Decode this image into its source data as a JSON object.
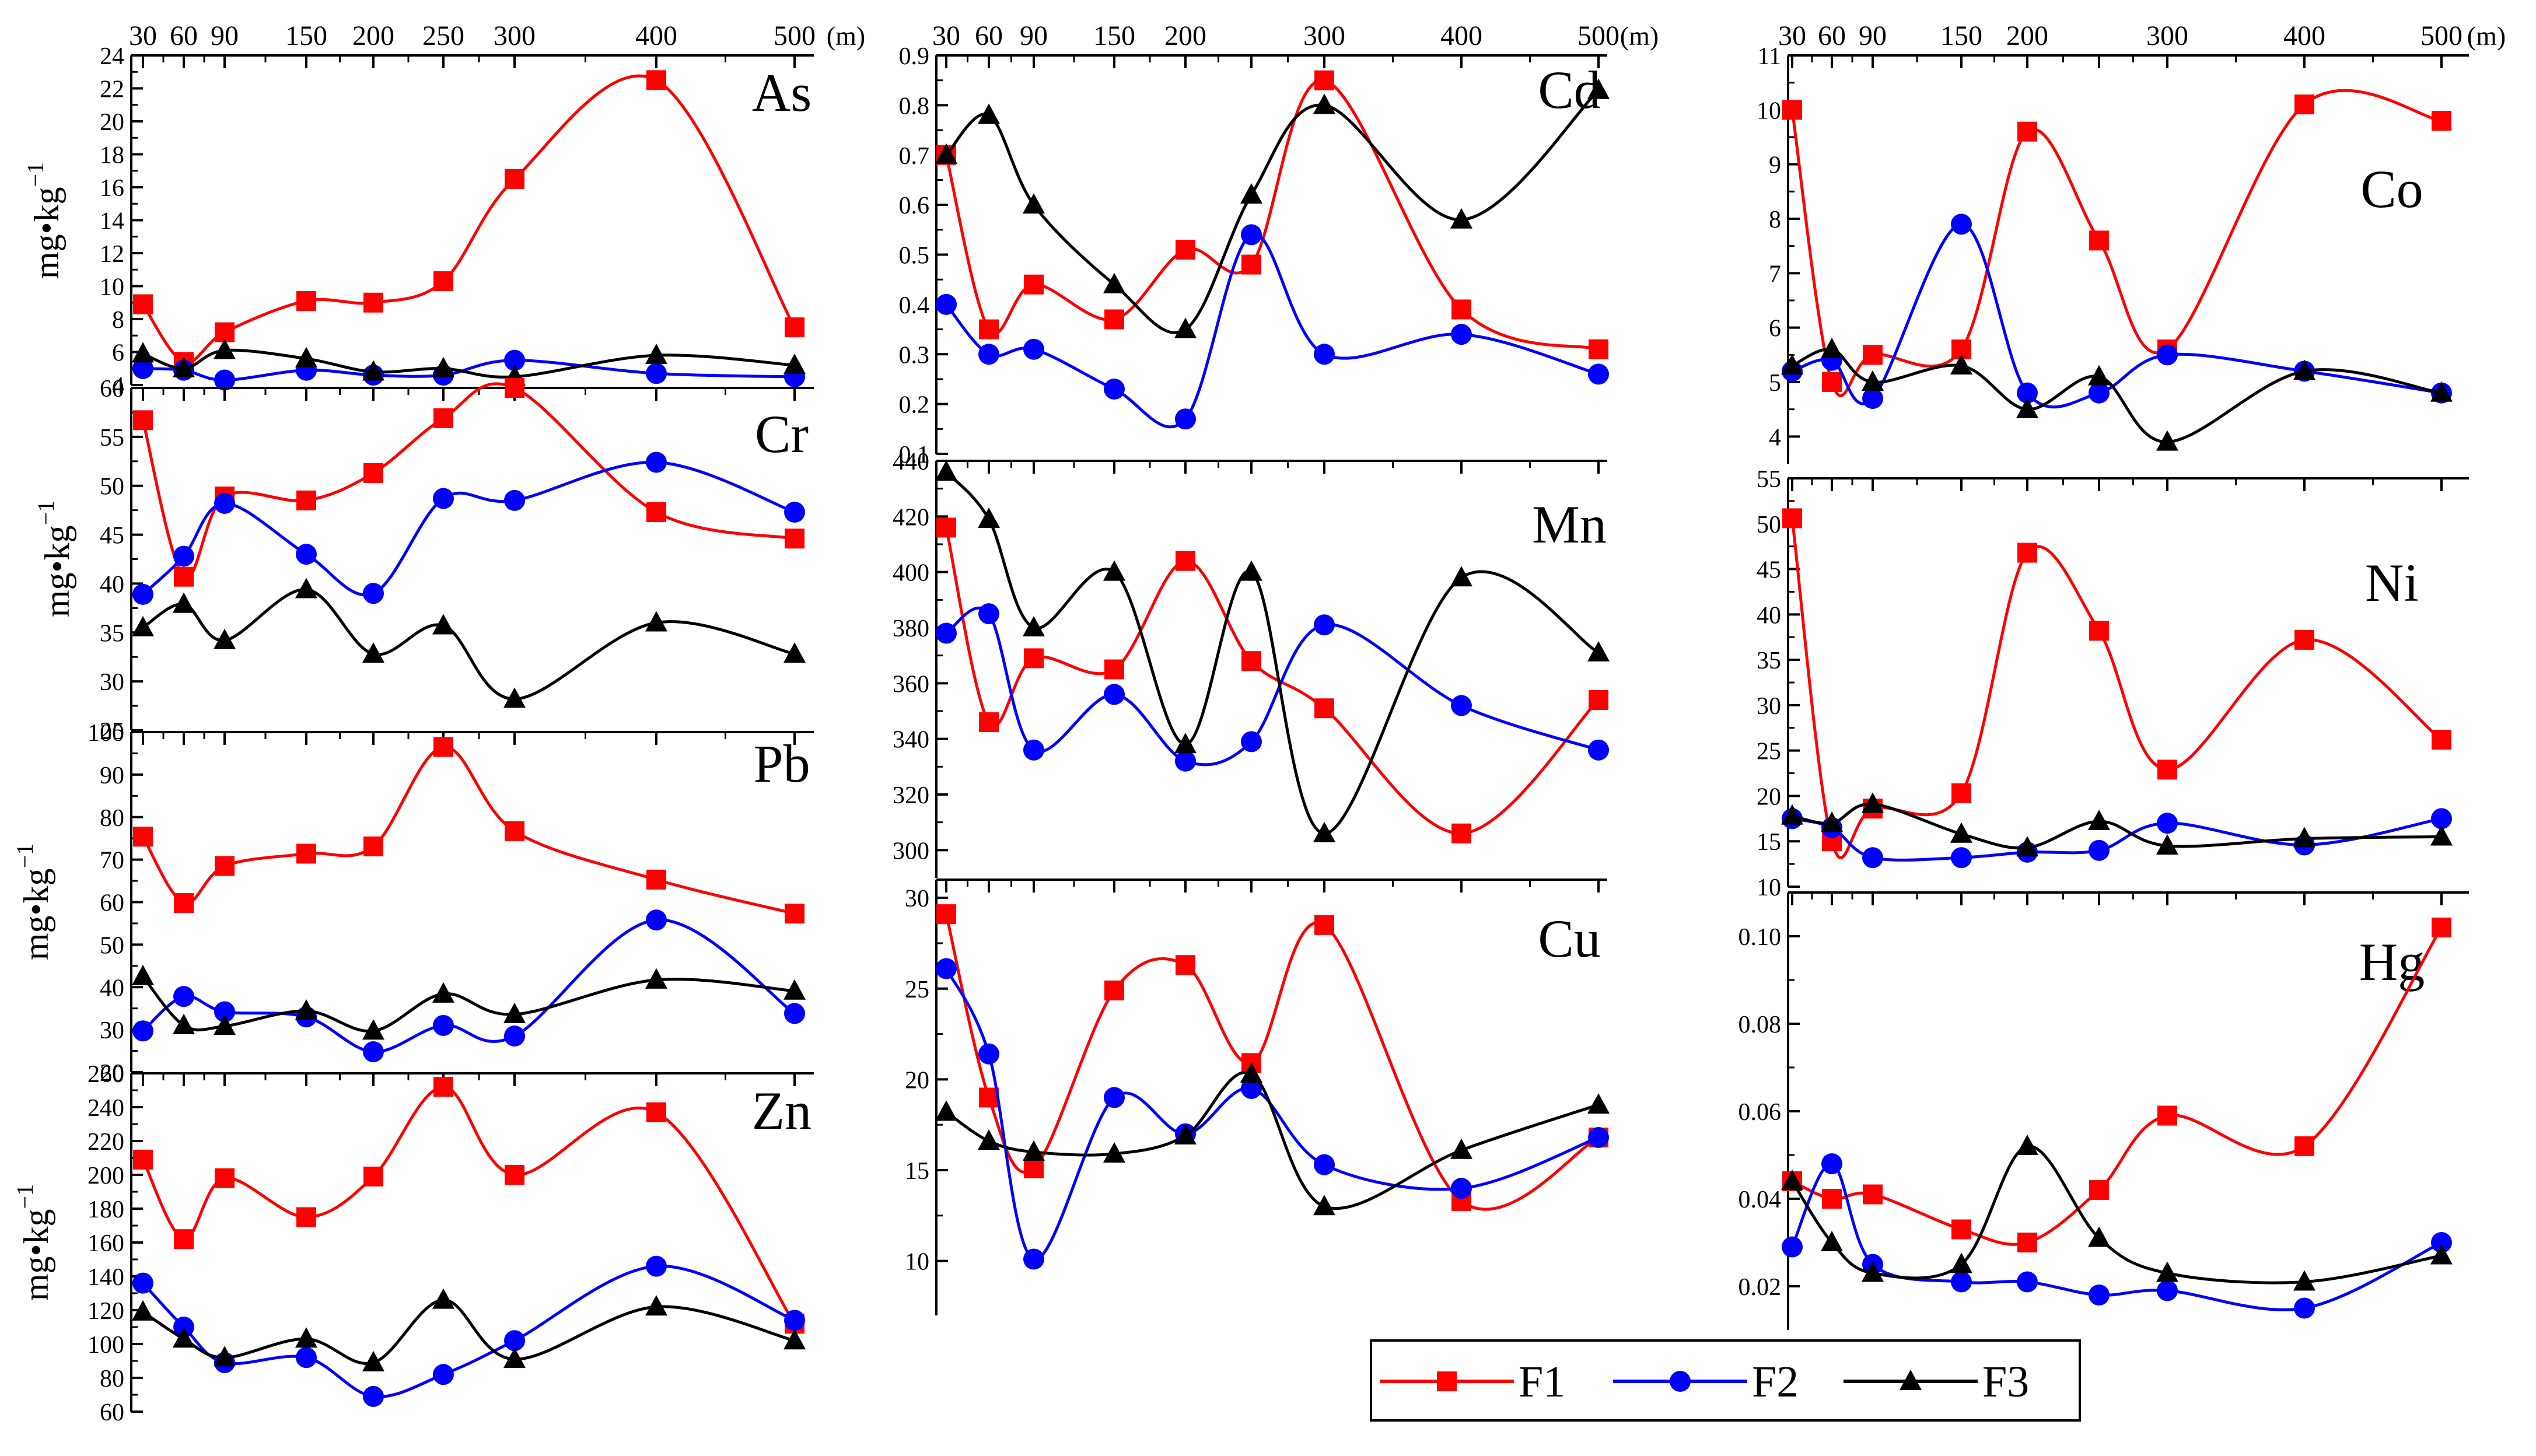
{
  "distance_unit": "(m)",
  "y_unit": "mg•kg",
  "y_unit_exp": "−1",
  "series_names": [
    "F1",
    "F2",
    "F3"
  ],
  "series_colors": [
    "#ff0000",
    "#0000ff",
    "#000000"
  ],
  "series_markers": [
    "square",
    "circle",
    "triangle"
  ],
  "x_ticks": [
    30,
    60,
    90,
    150,
    200,
    250,
    300,
    400,
    500
  ],
  "x_tick_labels": [
    "30",
    "60",
    "90",
    "150",
    "200",
    "250",
    "300",
    "400",
    "500"
  ],
  "x_label_sets": {
    "left": [
      "30",
      "60",
      "90",
      "150",
      "200",
      "250",
      "300",
      "400",
      "500"
    ],
    "mid": [
      "30",
      "60",
      "90",
      "150",
      "200",
      "300",
      "400",
      "500"
    ],
    "right": [
      "30",
      "60",
      "90",
      "150",
      "200",
      "300",
      "400",
      "500"
    ]
  },
  "chart_data": [
    {
      "element": "As",
      "type": "line",
      "categories": [
        30,
        60,
        90,
        150,
        200,
        250,
        300,
        400,
        500
      ],
      "ylim": [
        4,
        24
      ],
      "yticks": [
        4,
        6,
        8,
        10,
        12,
        14,
        16,
        18,
        20,
        22,
        24
      ],
      "series": [
        {
          "name": "F1",
          "values": [
            8.9,
            5.4,
            7.2,
            9.1,
            9.0,
            10.3,
            16.5,
            22.5,
            7.5
          ]
        },
        {
          "name": "F2",
          "values": [
            5.0,
            4.9,
            4.3,
            4.9,
            4.6,
            4.6,
            5.5,
            4.7,
            4.5
          ]
        },
        {
          "name": "F3",
          "values": [
            5.9,
            5.0,
            6.1,
            5.6,
            4.8,
            5.0,
            4.5,
            5.8,
            5.2
          ]
        }
      ]
    },
    {
      "element": "Cr",
      "type": "line",
      "categories": [
        30,
        60,
        90,
        150,
        200,
        250,
        300,
        400,
        500
      ],
      "ylim": [
        25,
        60
      ],
      "yticks": [
        25,
        30,
        35,
        40,
        45,
        50,
        55,
        60
      ],
      "series": [
        {
          "name": "F1",
          "values": [
            56.7,
            40.7,
            48.9,
            48.5,
            51.3,
            56.9,
            60.0,
            47.3,
            44.6
          ]
        },
        {
          "name": "F2",
          "values": [
            38.9,
            42.8,
            48.2,
            43.0,
            39.0,
            48.7,
            48.5,
            52.4,
            47.3
          ]
        },
        {
          "name": "F3",
          "values": [
            35.5,
            37.9,
            34.2,
            39.4,
            32.8,
            35.7,
            28.2,
            36.0,
            32.8
          ]
        }
      ]
    },
    {
      "element": "Pb",
      "type": "line",
      "categories": [
        30,
        60,
        90,
        150,
        200,
        250,
        300,
        400,
        500
      ],
      "ylim": [
        20,
        100
      ],
      "yticks": [
        20,
        30,
        40,
        50,
        60,
        70,
        80,
        90,
        100
      ],
      "series": [
        {
          "name": "F1",
          "values": [
            75.4,
            59.8,
            68.5,
            71.4,
            73.1,
            96.5,
            76.7,
            65.3,
            57.3
          ]
        },
        {
          "name": "F2",
          "values": [
            29.7,
            37.8,
            34.2,
            33.0,
            24.8,
            31.0,
            28.5,
            55.8,
            33.8
          ]
        },
        {
          "name": "F3",
          "values": [
            42.5,
            31.0,
            30.8,
            34.4,
            29.7,
            38.4,
            33.6,
            41.7,
            39.1
          ]
        }
      ]
    },
    {
      "element": "Zn",
      "type": "line",
      "categories": [
        30,
        60,
        90,
        150,
        200,
        250,
        300,
        400,
        500
      ],
      "ylim": [
        60,
        260
      ],
      "yticks": [
        60,
        80,
        100,
        120,
        140,
        160,
        180,
        200,
        220,
        240,
        260
      ],
      "series": [
        {
          "name": "F1",
          "values": [
            209,
            162,
            198,
            175,
            199,
            252,
            200,
            237,
            112
          ]
        },
        {
          "name": "F2",
          "values": [
            136,
            110,
            89,
            92,
            69,
            82,
            102,
            146,
            114
          ]
        },
        {
          "name": "F3",
          "values": [
            119,
            103,
            92,
            103,
            89,
            126,
            91,
            122,
            102
          ]
        }
      ]
    },
    {
      "element": "Cd",
      "type": "line",
      "categories": [
        30,
        60,
        90,
        150,
        200,
        250,
        300,
        400,
        500
      ],
      "ylim": [
        0.1,
        0.9
      ],
      "yticks": [
        0.1,
        0.2,
        0.3,
        0.4,
        0.5,
        0.6,
        0.7,
        0.8,
        0.9
      ],
      "series": [
        {
          "name": "F1",
          "values": [
            0.7,
            0.35,
            0.44,
            0.37,
            0.51,
            0.48,
            0.85,
            0.39,
            0.31
          ]
        },
        {
          "name": "F2",
          "values": [
            0.4,
            0.3,
            0.31,
            0.23,
            0.17,
            0.54,
            0.3,
            0.34,
            0.26
          ]
        },
        {
          "name": "F3",
          "values": [
            0.7,
            0.78,
            0.6,
            0.44,
            0.35,
            0.62,
            0.8,
            0.57,
            0.83
          ]
        }
      ]
    },
    {
      "element": "Mn",
      "type": "line",
      "categories": [
        30,
        60,
        90,
        150,
        200,
        250,
        300,
        400,
        500
      ],
      "ylim": [
        290,
        440
      ],
      "yticks": [
        300,
        320,
        340,
        360,
        380,
        400,
        420,
        440
      ],
      "series": [
        {
          "name": "F1",
          "values": [
            416,
            346,
            369,
            365,
            404,
            368,
            351,
            306,
            354
          ]
        },
        {
          "name": "F2",
          "values": [
            378,
            385,
            336,
            356,
            332,
            339,
            381,
            352,
            336
          ]
        },
        {
          "name": "F3",
          "values": [
            436,
            419,
            380,
            400,
            338,
            400,
            306,
            398,
            371
          ]
        }
      ]
    },
    {
      "element": "Cu",
      "type": "line",
      "categories": [
        30,
        60,
        90,
        150,
        200,
        250,
        300,
        400,
        500
      ],
      "ylim": [
        7,
        31
      ],
      "yticks": [
        10,
        15,
        20,
        25,
        30
      ],
      "series": [
        {
          "name": "F1",
          "values": [
            29.1,
            19.0,
            15.1,
            24.9,
            26.3,
            20.9,
            28.5,
            13.3,
            16.8
          ]
        },
        {
          "name": "F2",
          "values": [
            26.1,
            21.4,
            10.1,
            19.0,
            17.0,
            19.5,
            15.3,
            14.0,
            16.8
          ]
        },
        {
          "name": "F3",
          "values": [
            18.2,
            16.6,
            16.0,
            15.9,
            16.9,
            20.3,
            13.0,
            16.1,
            18.6
          ]
        }
      ]
    },
    {
      "element": "Co",
      "type": "line",
      "categories": [
        30,
        60,
        90,
        150,
        200,
        250,
        300,
        400,
        500
      ],
      "ylim": [
        3.5,
        11
      ],
      "yticks": [
        4,
        5,
        6,
        7,
        8,
        9,
        10,
        11
      ],
      "series": [
        {
          "name": "F1",
          "values": [
            10.0,
            5.0,
            5.5,
            5.6,
            9.6,
            7.6,
            5.6,
            10.1,
            9.8
          ]
        },
        {
          "name": "F2",
          "values": [
            5.2,
            5.4,
            4.7,
            7.9,
            4.8,
            4.8,
            5.5,
            5.2,
            4.8
          ]
        },
        {
          "name": "F3",
          "values": [
            5.3,
            5.6,
            5.0,
            5.3,
            4.5,
            5.1,
            3.9,
            5.2,
            4.8
          ]
        }
      ]
    },
    {
      "element": "Ni",
      "type": "line",
      "categories": [
        30,
        60,
        90,
        150,
        200,
        250,
        300,
        400,
        500
      ],
      "ylim": [
        10,
        55
      ],
      "yticks": [
        10,
        15,
        20,
        25,
        30,
        35,
        40,
        45,
        50,
        55
      ],
      "series": [
        {
          "name": "F1",
          "values": [
            50.6,
            15.0,
            18.6,
            20.3,
            46.8,
            38.2,
            22.9,
            37.2,
            26.2
          ]
        },
        {
          "name": "F2",
          "values": [
            17.5,
            16.5,
            13.2,
            13.2,
            13.8,
            14.0,
            17.0,
            14.6,
            17.5
          ]
        },
        {
          "name": "F3",
          "values": [
            17.8,
            17.0,
            19.1,
            15.8,
            14.3,
            17.2,
            14.5,
            15.3,
            15.5
          ]
        }
      ]
    },
    {
      "element": "Hg",
      "type": "line",
      "categories": [
        30,
        60,
        90,
        150,
        200,
        250,
        300,
        400,
        500
      ],
      "ylim": [
        0.01,
        0.11
      ],
      "yticks": [
        0.02,
        0.04,
        0.06,
        0.08,
        0.1
      ],
      "series": [
        {
          "name": "F1",
          "values": [
            0.044,
            0.04,
            0.041,
            0.033,
            0.03,
            0.042,
            0.059,
            0.052,
            0.102
          ]
        },
        {
          "name": "F2",
          "values": [
            0.029,
            0.048,
            0.025,
            0.021,
            0.021,
            0.018,
            0.019,
            0.015,
            0.03
          ]
        },
        {
          "name": "F3",
          "values": [
            0.044,
            0.03,
            0.023,
            0.025,
            0.052,
            0.031,
            0.023,
            0.021,
            0.027
          ]
        }
      ]
    }
  ]
}
